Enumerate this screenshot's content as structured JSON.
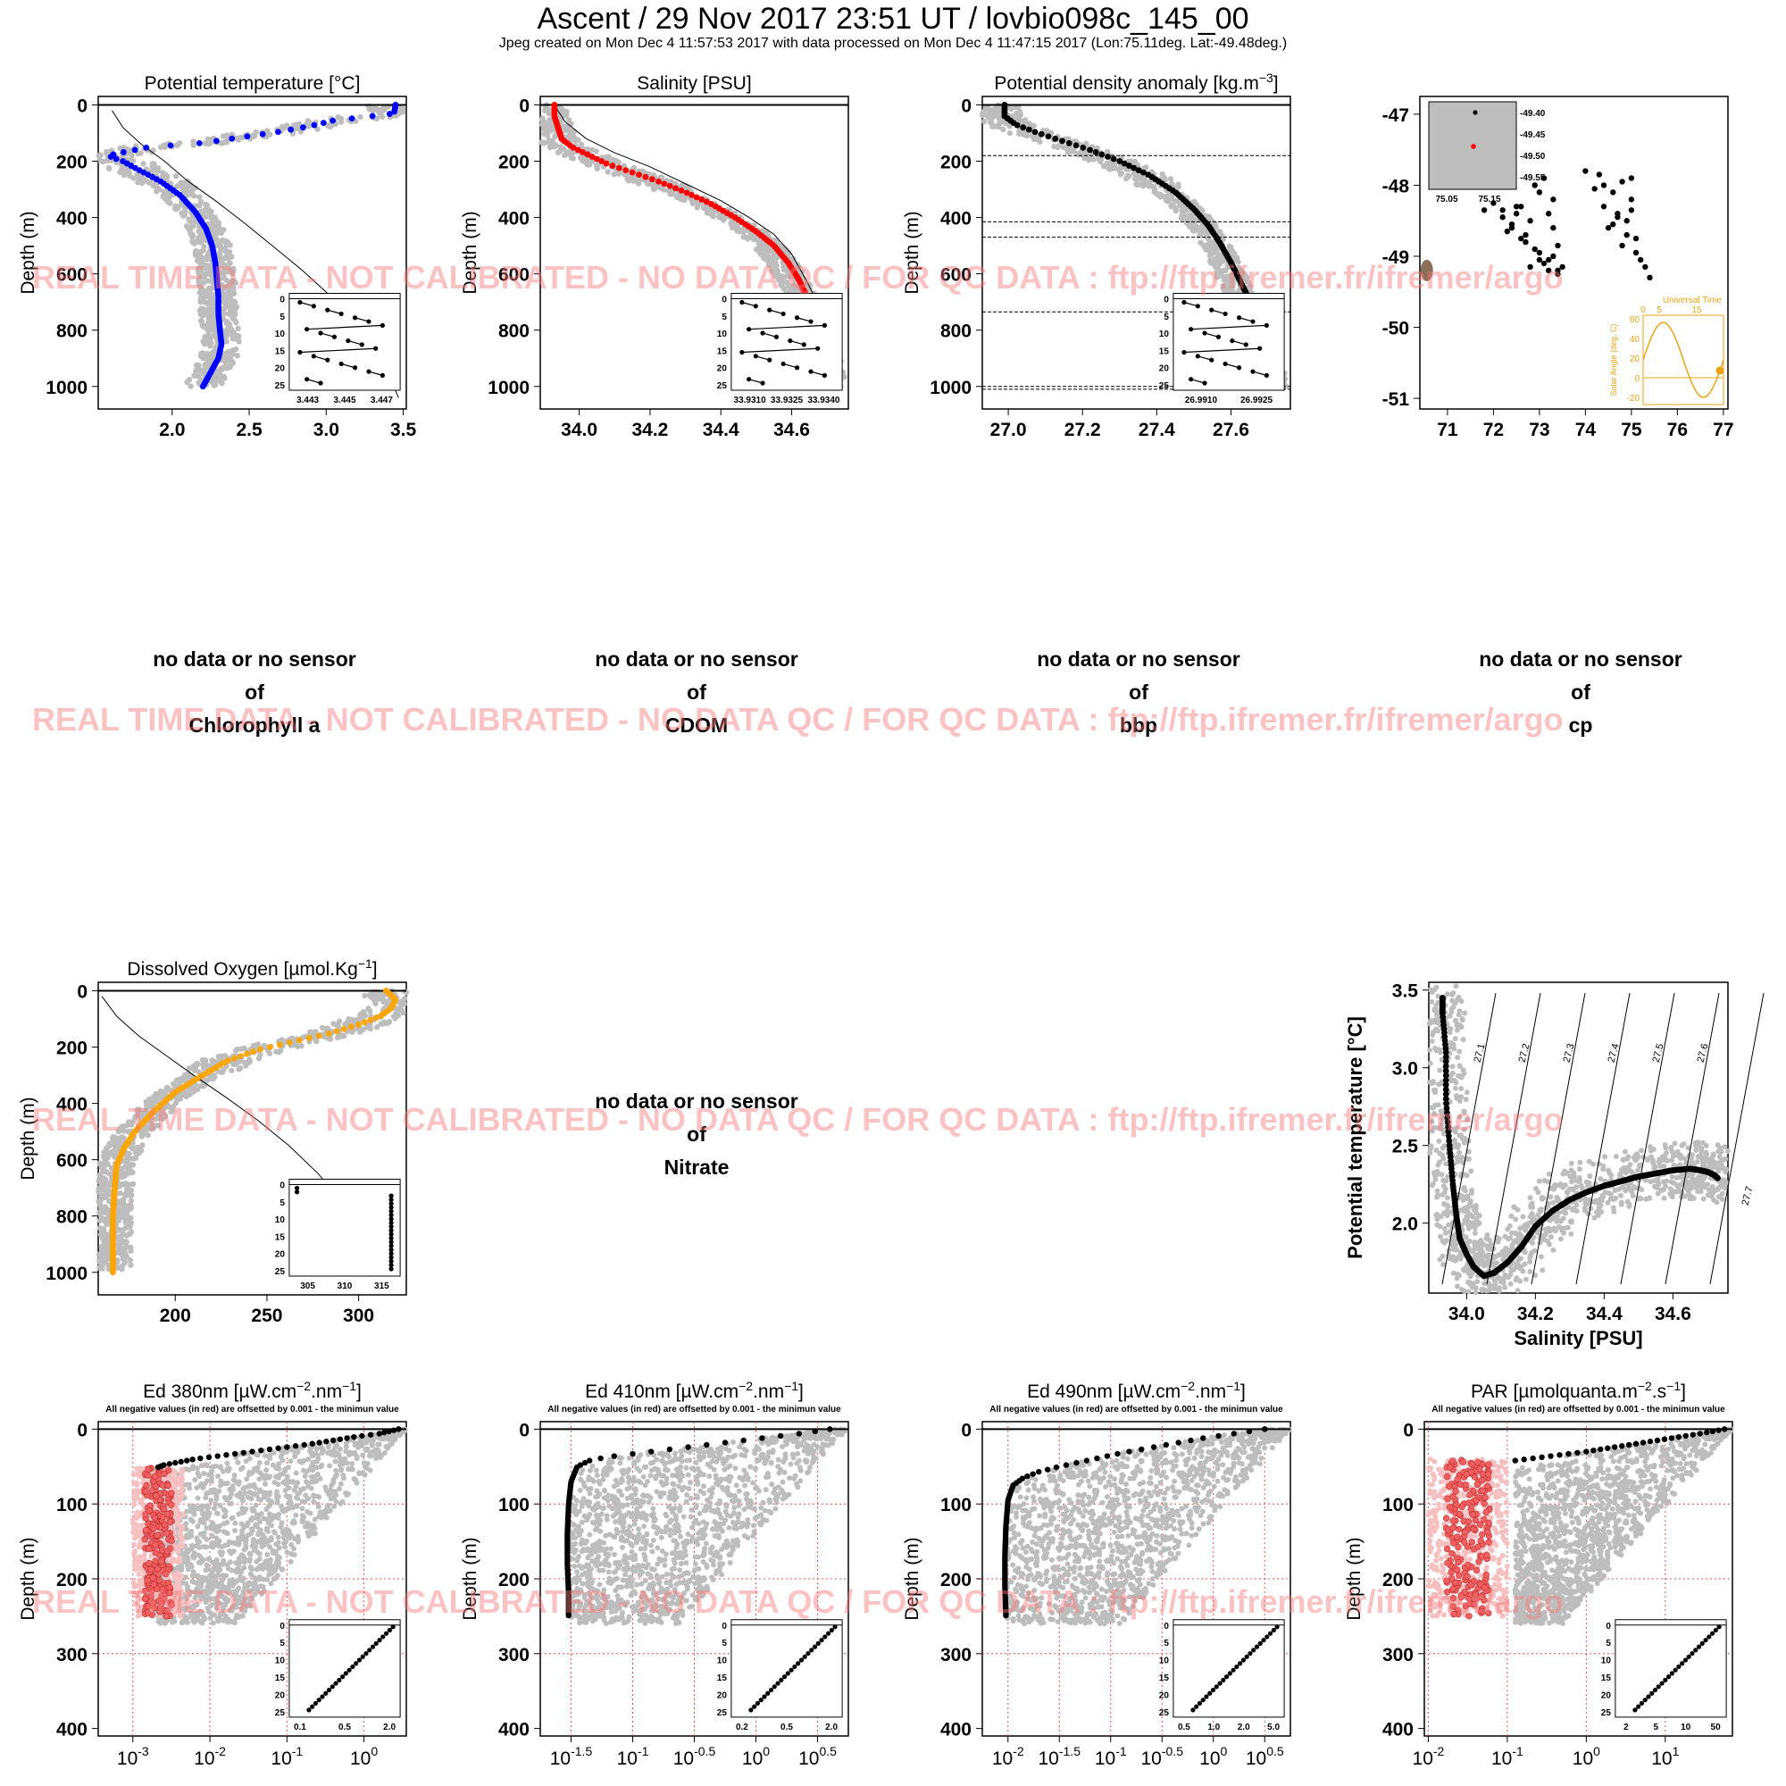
{
  "header": {
    "title": "Ascent / 29 Nov 2017 23:51 UT /  lovbio098c_145_00",
    "subtitle": "Jpeg created on Mon Dec  4 11:57:53 2017 with data processed on Mon Dec  4 11:47:15 2017 (Lon:75.11deg. Lat:-49.48deg.)"
  },
  "watermark": "REAL TIME DATA - NOT CALIBRATED - NO DATA QC   /  FOR QC DATA : ftp://ftp.ifremer.fr/ifremer/argo",
  "nodata": {
    "line1": "no data or no sensor",
    "line2": "of",
    "chl": "Chlorophyll a",
    "cdom": "CDOM",
    "bbp": "bbp",
    "cp": "cp",
    "nitrate": "Nitrate"
  },
  "colors": {
    "temperature": "#0000ff",
    "salinity": "#ff0000",
    "density": "#000000",
    "oxygen": "#ffa500",
    "history": "#bdbdbd",
    "negative": "#f06060",
    "negative_history": "#f7c0c0",
    "watermark": "#f58080",
    "solar": "#e8a317"
  },
  "chart_data": [
    {
      "id": "temp",
      "type": "scatter",
      "title": "Potential temperature [°C]",
      "ylabel": "Depth (m)",
      "xlim": [
        1.52,
        3.52
      ],
      "ylim": [
        1080,
        -30
      ],
      "xticks": [
        "2.0",
        "2.5",
        "3.0",
        "3.5"
      ],
      "yticks": [
        "0",
        "200",
        "400",
        "600",
        "800",
        "1000"
      ],
      "profile_x": [
        3.45,
        3.44,
        3.3,
        3.05,
        2.9,
        2.7,
        2.45,
        2.2,
        1.85,
        1.62,
        1.6,
        1.68,
        1.78,
        1.92,
        2.05,
        2.15,
        2.22,
        2.26,
        2.28,
        2.29,
        2.3,
        2.3,
        2.31,
        2.32,
        2.3,
        2.26,
        2.22,
        2.2
      ],
      "profile_y": [
        0,
        30,
        40,
        55,
        75,
        95,
        115,
        135,
        150,
        175,
        185,
        200,
        230,
        270,
        320,
        380,
        440,
        500,
        560,
        620,
        680,
        740,
        800,
        850,
        900,
        940,
        980,
        1000
      ],
      "climatology_x": [
        1.61,
        1.68,
        1.8,
        1.95,
        2.1,
        2.28,
        2.47,
        2.65,
        2.85,
        3.03,
        3.18,
        3.3,
        3.4,
        3.47
      ],
      "climatology_y": [
        20,
        80,
        140,
        200,
        270,
        340,
        420,
        500,
        590,
        680,
        770,
        860,
        950,
        1040
      ],
      "inset": {
        "xticks": [
          "3.443",
          "3.445",
          "3.447"
        ],
        "yticks": [
          "0",
          "5",
          "10",
          "15",
          "20",
          "25"
        ]
      }
    },
    {
      "id": "sal",
      "type": "scatter",
      "title": "Salinity [PSU]",
      "ylabel": "Depth (m)",
      "xlim": [
        33.89,
        34.76
      ],
      "ylim": [
        1080,
        -30
      ],
      "xticks": [
        "34.0",
        "34.2",
        "34.4",
        "34.6"
      ],
      "yticks": [
        "0",
        "200",
        "400",
        "600",
        "800",
        "1000"
      ],
      "profile_x": [
        33.93,
        33.93,
        33.94,
        33.95,
        33.98,
        34.03,
        34.08,
        34.15,
        34.22,
        34.3,
        34.37,
        34.44,
        34.5,
        34.55,
        34.59,
        34.62,
        34.65,
        34.68,
        34.7,
        34.72,
        34.73
      ],
      "profile_y": [
        0,
        40,
        80,
        120,
        150,
        180,
        210,
        240,
        270,
        310,
        350,
        400,
        450,
        500,
        560,
        620,
        700,
        780,
        850,
        930,
        1000
      ],
      "climatology_x": [
        33.93,
        33.96,
        34.02,
        34.1,
        34.2,
        34.3,
        34.4,
        34.48,
        34.55,
        34.6,
        34.64,
        34.68,
        34.72
      ],
      "climatology_y": [
        0,
        60,
        120,
        170,
        220,
        280,
        340,
        400,
        460,
        530,
        620,
        720,
        840
      ],
      "inset": {
        "xticks": [
          "33.9310",
          "33.9325",
          "33.9340"
        ],
        "yticks": [
          "0",
          "5",
          "10",
          "15",
          "20",
          "25"
        ]
      }
    },
    {
      "id": "dens",
      "type": "scatter",
      "title": "Potential density anomaly [kg.m",
      "title_sup": "−3",
      "title_end": "]",
      "ylabel": "Depth (m)",
      "xlim": [
        26.93,
        27.76
      ],
      "ylim": [
        1080,
        -30
      ],
      "xticks": [
        "27.0",
        "27.2",
        "27.4",
        "27.6"
      ],
      "yticks": [
        "0",
        "200",
        "400",
        "600",
        "800",
        "1000"
      ],
      "profile_x": [
        26.99,
        26.99,
        27.02,
        27.08,
        27.15,
        27.22,
        27.3,
        27.38,
        27.45,
        27.5,
        27.54,
        27.57,
        27.6,
        27.63,
        27.66,
        27.68,
        27.7,
        27.72,
        27.73
      ],
      "profile_y": [
        0,
        40,
        70,
        100,
        130,
        160,
        200,
        250,
        310,
        370,
        430,
        490,
        560,
        640,
        720,
        800,
        870,
        940,
        1000
      ],
      "hlines": [
        180,
        415,
        470,
        735,
        1000,
        1010
      ],
      "inset": {
        "xticks": [
          "26.9910",
          "26.9925"
        ],
        "yticks": [
          "0",
          "5",
          "10",
          "15",
          "20",
          "25"
        ]
      }
    },
    {
      "id": "map",
      "type": "scatter",
      "xlim": [
        70.4,
        77.1
      ],
      "ylim": [
        -51.15,
        -46.75
      ],
      "xticks": [
        "71",
        "72",
        "73",
        "74",
        "75",
        "76",
        "77"
      ],
      "yticks": [
        "-47",
        "-48",
        "-49",
        "-50",
        "-51"
      ],
      "lon": [
        71.8,
        72.0,
        72.2,
        72.4,
        72.5,
        72.3,
        72.6,
        72.8,
        72.7,
        72.9,
        73.0,
        72.8,
        73.1,
        73.2,
        73.3,
        73.4,
        73.3,
        73.5,
        73.2,
        73.0,
        72.9,
        73.1,
        73.3,
        73.4,
        72.6,
        72.5,
        72.2,
        72.4,
        72.7,
        73.0,
        73.2,
        73.4,
        74.0,
        74.2,
        74.4,
        74.3,
        74.6,
        74.8,
        74.7,
        75.0,
        74.9,
        75.1,
        74.5,
        74.9,
        75.0,
        74.8,
        75.2,
        75.3,
        75.0,
        74.7,
        74.4,
        74.6,
        75.1,
        75.4
      ],
      "lat": [
        -48.35,
        -48.25,
        -48.45,
        -48.55,
        -48.4,
        -48.65,
        -48.3,
        -48.5,
        -48.7,
        -48.9,
        -49.05,
        -49.15,
        -49.1,
        -49.2,
        -49.0,
        -48.85,
        -48.6,
        -49.15,
        -48.4,
        -48.1,
        -48.0,
        -47.9,
        -48.2,
        -49.25,
        -48.75,
        -48.3,
        -48.35,
        -48.6,
        -48.8,
        -48.95,
        -49.05,
        -49.2,
        -47.8,
        -48.05,
        -48.3,
        -47.85,
        -48.1,
        -47.95,
        -48.45,
        -48.2,
        -48.7,
        -48.95,
        -48.6,
        -48.5,
        -48.35,
        -48.85,
        -49.05,
        -49.15,
        -47.9,
        -48.4,
        -48.0,
        -48.55,
        -48.75,
        -49.3
      ],
      "inset": {
        "xticks": [
          "75.05",
          "75.15"
        ],
        "yticks": [
          "-49.40",
          "-49.45",
          "-49.50",
          "-49.55"
        ]
      },
      "solar": {
        "title": "Universal Time",
        "ylabel": "Solar Angle (deg. C)",
        "xticks": [
          "0",
          "5",
          "15"
        ],
        "yticks": [
          "60",
          "40",
          "20",
          "0",
          "-20"
        ]
      }
    },
    {
      "id": "oxy",
      "type": "scatter",
      "title": "Dissolved Oxygen [µmol.Kg",
      "title_sup": "−1",
      "title_end": "]",
      "ylabel": "Depth (m)",
      "xlim": [
        158,
        326
      ],
      "ylim": [
        1080,
        -30
      ],
      "xticks": [
        "200",
        "250",
        "300"
      ],
      "yticks": [
        "0",
        "200",
        "400",
        "600",
        "800",
        "1000"
      ],
      "profile_x": [
        315,
        320,
        318,
        312,
        300,
        285,
        265,
        245,
        228,
        215,
        200,
        188,
        178,
        172,
        168,
        167,
        166,
        166,
        166
      ],
      "profile_y": [
        0,
        30,
        60,
        90,
        120,
        150,
        180,
        210,
        250,
        300,
        360,
        430,
        500,
        560,
        620,
        700,
        800,
        900,
        1000
      ],
      "climatology_x": [
        160,
        168,
        180,
        195,
        210,
        228,
        245,
        262,
        278,
        292,
        305,
        318
      ],
      "climatology_y": [
        20,
        90,
        160,
        230,
        300,
        380,
        460,
        550,
        650,
        760,
        880,
        1000
      ],
      "inset": {
        "xticks": [
          "305",
          "310",
          "315"
        ],
        "yticks": [
          "0",
          "5",
          "10",
          "15",
          "20",
          "25"
        ]
      }
    },
    {
      "id": "ts",
      "type": "scatter",
      "xlabel": "Salinity [PSU]",
      "ylabel": "Potential temperature [°C]",
      "xlim": [
        33.89,
        34.76
      ],
      "ylim": [
        1.55,
        3.55
      ],
      "xticks": [
        "34.0",
        "34.2",
        "34.4",
        "34.6"
      ],
      "yticks": [
        "2.0",
        "2.5",
        "3.0",
        "3.5"
      ],
      "sal": [
        33.93,
        33.93,
        33.94,
        33.94,
        33.95,
        33.96,
        33.97,
        33.98,
        34.0,
        34.02,
        34.05,
        34.08,
        34.12,
        34.16,
        34.2,
        34.25,
        34.3,
        34.35,
        34.4,
        34.45,
        34.5,
        34.55,
        34.6,
        34.65,
        34.68,
        34.7,
        34.72,
        34.73
      ],
      "temp": [
        3.45,
        3.35,
        3.1,
        2.8,
        2.5,
        2.25,
        2.05,
        1.9,
        1.8,
        1.72,
        1.66,
        1.68,
        1.75,
        1.85,
        1.98,
        2.08,
        2.15,
        2.2,
        2.24,
        2.27,
        2.3,
        2.32,
        2.34,
        2.35,
        2.34,
        2.33,
        2.31,
        2.29
      ],
      "isopycnals": [
        "27.1",
        "27.2",
        "27.3",
        "27.4",
        "27.5",
        "27.6",
        "27.7"
      ]
    },
    {
      "id": "ed380",
      "type": "scatter",
      "title": "Ed 380nm [µW.cm",
      "title_sup": "−2",
      "title_mid": ".nm",
      "title_sup2": "−1",
      "title_end": "]",
      "note": "All negative values (in red) are offsetted by 0.001 - the minimun value",
      "ylabel": "Depth (m)",
      "xlim_log": [
        -3.45,
        0.55
      ],
      "ylim": [
        410,
        -10
      ],
      "xticks": [
        "10^-3",
        "10^-2",
        "10^-1",
        "10^0"
      ],
      "xtick_values": [
        -3,
        -2,
        -1,
        0
      ],
      "yticks": [
        "0",
        "100",
        "200",
        "300",
        "400"
      ],
      "profile_log": [
        0.45,
        0.2,
        -0.1,
        -0.4,
        -0.7,
        -1.0,
        -1.3,
        -1.6,
        -1.9,
        -2.2,
        -2.4,
        -2.6,
        -2.7
      ],
      "profile_y": [
        0,
        6,
        10,
        15,
        20,
        24,
        28,
        32,
        36,
        40,
        44,
        48,
        52
      ],
      "negative_range": [
        -3.0,
        -2.35
      ],
      "negative_depth": [
        50,
        250
      ],
      "inset": {
        "xticks": [
          "0.1",
          "0.5",
          "2.0"
        ],
        "yticks": [
          "0",
          "5",
          "10",
          "15",
          "20",
          "25"
        ]
      }
    },
    {
      "id": "ed410",
      "type": "scatter",
      "title": "Ed 410nm [µW.cm",
      "title_sup": "−2",
      "title_mid": ".nm",
      "title_sup2": "−1",
      "title_end": "]",
      "note": "All negative values (in red) are offsetted by 0.001 - the minimun value",
      "ylabel": "Depth (m)",
      "xlim_log": [
        -1.75,
        0.75
      ],
      "ylim": [
        410,
        -10
      ],
      "xticks": [
        "10^-1.5",
        "10^-1",
        "10^-0.5",
        "10^0",
        "10^0.5"
      ],
      "xtick_values": [
        -1.5,
        -1,
        -0.5,
        0,
        0.5
      ],
      "yticks": [
        "0",
        "100",
        "200",
        "300",
        "400"
      ],
      "profile_log": [
        0.6,
        0.4,
        0.2,
        0.0,
        -0.2,
        -0.4,
        -0.6,
        -0.8,
        -1.0,
        -1.2,
        -1.35,
        -1.45,
        -1.5,
        -1.52,
        -1.53,
        -1.53,
        -1.52,
        -1.52
      ],
      "profile_y": [
        0,
        5,
        9,
        13,
        17,
        21,
        25,
        29,
        33,
        37,
        42,
        50,
        70,
        100,
        140,
        180,
        220,
        250
      ],
      "inset": {
        "xticks": [
          "0.2",
          "0.5",
          "2.0"
        ],
        "yticks": [
          "0",
          "5",
          "10",
          "15",
          "20",
          "25"
        ]
      }
    },
    {
      "id": "ed490",
      "type": "scatter",
      "title": "Ed 490nm [µW.cm",
      "title_sup": "−2",
      "title_mid": ".nm",
      "title_sup2": "−1",
      "title_end": "]",
      "note": "All negative values (in red) are offsetted by 0.001 - the minimun value",
      "ylabel": "Depth (m)",
      "xlim_log": [
        -2.25,
        0.75
      ],
      "ylim": [
        410,
        -10
      ],
      "xticks": [
        "10^-2",
        "10^-1.5",
        "10^-1",
        "10^-0.5",
        "10^0",
        "10^0.5"
      ],
      "xtick_values": [
        -2,
        -1.5,
        -1,
        -0.5,
        0,
        0.5
      ],
      "yticks": [
        "0",
        "100",
        "200",
        "300",
        "400"
      ],
      "profile_log": [
        0.5,
        0.3,
        0.1,
        -0.1,
        -0.3,
        -0.5,
        -0.7,
        -0.9,
        -1.1,
        -1.3,
        -1.5,
        -1.7,
        -1.85,
        -1.95,
        -2.0,
        -2.02,
        -2.03,
        -2.03,
        -2.02
      ],
      "profile_y": [
        0,
        4,
        8,
        12,
        17,
        22,
        27,
        32,
        38,
        44,
        50,
        57,
        65,
        75,
        95,
        130,
        170,
        210,
        250
      ],
      "inset": {
        "xticks": [
          "0.5",
          "1.0",
          "2.0",
          "5.0"
        ],
        "yticks": [
          "0",
          "5",
          "10",
          "15",
          "20",
          "25"
        ]
      }
    },
    {
      "id": "par",
      "type": "scatter",
      "title": "PAR [µmolquanta.m",
      "title_sup": "−2",
      "title_mid": ".s",
      "title_sup2": "−1",
      "title_end": "]",
      "note": "All negative values (in red) are offsetted by 0.001 - the minimun value",
      "ylabel": "Depth (m)",
      "xlim_log": [
        -2.05,
        1.85
      ],
      "ylim": [
        410,
        -10
      ],
      "xticks": [
        "10^-2",
        "10^-1",
        "10^0",
        "10^1"
      ],
      "xtick_values": [
        -2,
        -1,
        0,
        1
      ],
      "yticks": [
        "0",
        "100",
        "200",
        "300",
        "400"
      ],
      "profile_log": [
        1.75,
        1.5,
        1.2,
        0.9,
        0.6,
        0.3,
        0.0,
        -0.3,
        -0.6,
        -0.9
      ],
      "profile_y": [
        0,
        5,
        10,
        15,
        20,
        25,
        30,
        34,
        38,
        42
      ],
      "negative_range": [
        -2.0,
        -1.0
      ],
      "negative_depth": [
        40,
        250
      ],
      "inset": {
        "xticks": [
          "2",
          "5",
          "10",
          "50"
        ],
        "yticks": [
          "0",
          "5",
          "10",
          "15",
          "20",
          "25"
        ]
      }
    }
  ]
}
